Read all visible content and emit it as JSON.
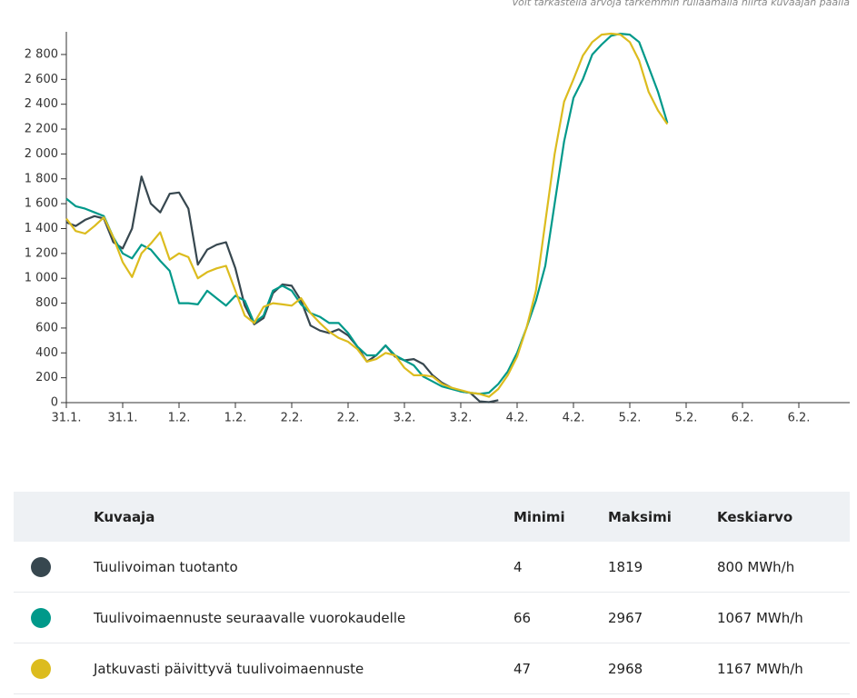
{
  "chart_data": {
    "type": "line",
    "subtitle": "Voit tarkastella arvoja tarkemmin rullaamalla hiirtä kuvaajan päällä",
    "categories": [
      "31.1.",
      null,
      null,
      null,
      null,
      null,
      "31.1.",
      null,
      null,
      null,
      null,
      null,
      "1.2.",
      null,
      null,
      null,
      null,
      null,
      "1.2.",
      null,
      null,
      null,
      null,
      null,
      "2.2.",
      null,
      null,
      null,
      null,
      null,
      "2.2.",
      null,
      null,
      null,
      null,
      null,
      "3.2.",
      null,
      null,
      null,
      null,
      null,
      "3.2.",
      null,
      null,
      null,
      null,
      null,
      "4.2.",
      null,
      null,
      null,
      null,
      null,
      "4.2.",
      null,
      null,
      null,
      null,
      null,
      "5.2.",
      null,
      null,
      null,
      null,
      null,
      "5.2.",
      null,
      null,
      null,
      null,
      null,
      "6.2.",
      null,
      null,
      null,
      null,
      null,
      "6.2.",
      null,
      null,
      null,
      null,
      null
    ],
    "ylim": [
      0,
      3000
    ],
    "yticks": [
      0,
      200,
      400,
      600,
      800,
      {
        "value": 1000,
        "label": "1 000"
      },
      {
        "value": 1200,
        "label": "1 200"
      },
      {
        "value": 1400,
        "label": "1 400"
      },
      {
        "value": 1600,
        "label": "1 600"
      },
      {
        "value": 1800,
        "label": "1 800"
      },
      {
        "value": 2000,
        "label": "2 000"
      },
      {
        "value": 2200,
        "label": "2 200"
      },
      {
        "value": 2400,
        "label": "2 400"
      },
      {
        "value": 2600,
        "label": "2 600"
      },
      {
        "value": 2800,
        "label": "2 800"
      }
    ],
    "series": [
      {
        "name": "Tuulivoiman tuotanto",
        "color": "#37474f",
        "values": [
          1450,
          1420,
          1470,
          1500,
          1480,
          1290,
          1240,
          1400,
          1819,
          1600,
          1530,
          1680,
          1690,
          1560,
          1110,
          1230,
          1270,
          1290,
          1080,
          780,
          630,
          680,
          880,
          950,
          940,
          820,
          620,
          580,
          560,
          590,
          540,
          450,
          330,
          380,
          460,
          370,
          340,
          350,
          310,
          220,
          160,
          120,
          90,
          80,
          10,
          4,
          20,
          null,
          null,
          null,
          null,
          null,
          null,
          null,
          null,
          null,
          null,
          null,
          null,
          null,
          null,
          null,
          null,
          null,
          null,
          null,
          null,
          null,
          null,
          null,
          null,
          null,
          null,
          null,
          null,
          null,
          null,
          null,
          null,
          null,
          null,
          null,
          null,
          null
        ]
      },
      {
        "name": "Tuulivoimaennuste seuraavalle vuorokaudelle",
        "color": "#00998a",
        "values": [
          1640,
          1580,
          1560,
          1530,
          1500,
          1330,
          1200,
          1160,
          1270,
          1230,
          1140,
          1060,
          800,
          800,
          790,
          900,
          840,
          780,
          860,
          820,
          640,
          700,
          900,
          940,
          900,
          790,
          720,
          690,
          640,
          640,
          560,
          450,
          380,
          380,
          460,
          380,
          340,
          300,
          210,
          170,
          130,
          110,
          90,
          80,
          70,
          80,
          150,
          250,
          400,
          600,
          820,
          1100,
          1600,
          2100,
          2450,
          2600,
          2800,
          2880,
          2950,
          2967,
          2960,
          2900,
          2700,
          2500,
          2250,
          null,
          null,
          null,
          null,
          null,
          null,
          null,
          null,
          null,
          null,
          null,
          null,
          null,
          null,
          null,
          null,
          null,
          null,
          null
        ]
      },
      {
        "name": "Jatkuvasti päivittyvä tuulivoimaennuste",
        "color": "#dcbc1e",
        "values": [
          1480,
          1380,
          1360,
          1420,
          1490,
          1330,
          1130,
          1010,
          1200,
          1280,
          1370,
          1150,
          1200,
          1170,
          1000,
          1050,
          1080,
          1100,
          900,
          700,
          640,
          770,
          800,
          790,
          780,
          840,
          720,
          640,
          570,
          520,
          490,
          430,
          330,
          350,
          400,
          380,
          280,
          220,
          220,
          210,
          150,
          120,
          100,
          80,
          70,
          47,
          110,
          220,
          370,
          600,
          900,
          1450,
          2000,
          2420,
          2600,
          2790,
          2900,
          2960,
          2968,
          2960,
          2900,
          2750,
          2500,
          2350,
          2240,
          null,
          null,
          null,
          null,
          null,
          null,
          null,
          null,
          null,
          null,
          null,
          null,
          null,
          null,
          null,
          null,
          null,
          null,
          null
        ]
      }
    ]
  },
  "table": {
    "columns": [
      "Kuvaaja",
      "Minimi",
      "Maksimi",
      "Keskiarvo"
    ],
    "rows": [
      {
        "name": "Tuulivoiman tuotanto",
        "color": "#37474f",
        "min": "4",
        "max": "1819",
        "avg": "800 MWh/h"
      },
      {
        "name": "Tuulivoimaennuste seuraavalle vuorokaudelle",
        "color": "#00998a",
        "min": "66",
        "max": "2967",
        "avg": "1067 MWh/h"
      },
      {
        "name": "Jatkuvasti päivittyvä tuulivoimaennuste",
        "color": "#dcbc1e",
        "min": "47",
        "max": "2968",
        "avg": "1167 MWh/h"
      }
    ]
  }
}
